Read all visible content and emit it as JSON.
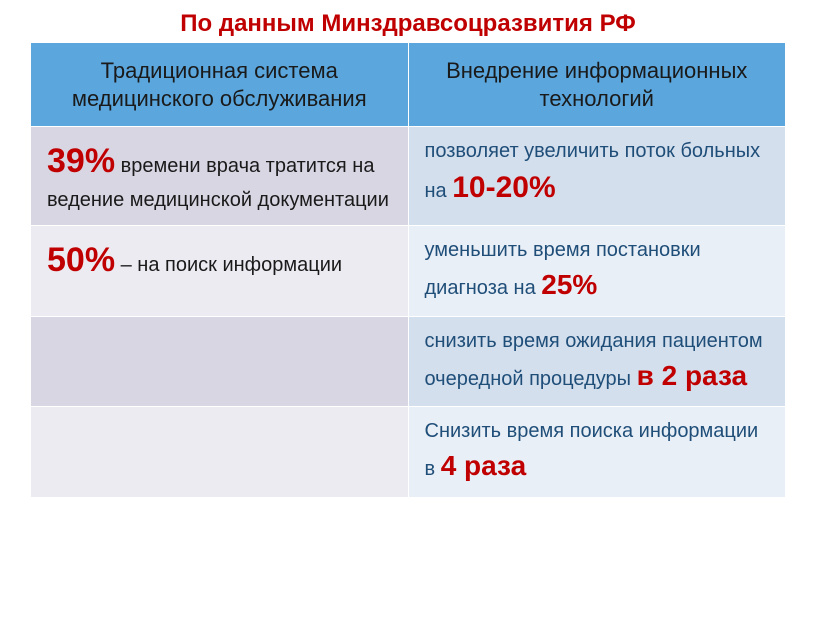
{
  "title": {
    "text": "По данным Минздравсоцразвития РФ",
    "color": "#c00000",
    "fontsize": 24
  },
  "table": {
    "header_bg_left": "#5aa6dd",
    "header_bg_right": "#5aa6dd",
    "header_color": "#1a1a1a",
    "col_widths": [
      "50%",
      "50%"
    ],
    "headers": {
      "left": "Традиционная система медицинского обслуживания",
      "right": "Внедрение информационных технологий"
    },
    "row_bg": {
      "left_alt1": "#d9d6e4",
      "left_alt2": "#ecebf2",
      "right_alt1": "#d4dfed",
      "right_alt2": "#e9eff6"
    },
    "text_colors": {
      "left_body": "#1a1a1a",
      "right_body": "#1f4e79",
      "emphasis": "#c00000"
    },
    "rows": [
      {
        "left_big": "39%",
        "left_big_size": 34,
        "left_rest": " времени врача тратится на ведение медицинской документации",
        "right_pre": "позволяет увеличить поток больных на ",
        "right_big": "10-20%",
        "right_big_size": 30,
        "right_post": ""
      },
      {
        "left_big": "50%",
        "left_big_size": 34,
        "left_rest": " – на поиск информации",
        "right_pre": "уменьшить время постановки диагноза на ",
        "right_big": "25%",
        "right_big_size": 28,
        "right_post": ""
      },
      {
        "left_big": "",
        "left_big_size": 0,
        "left_rest": "",
        "right_pre": "снизить время ожидания пациентом очередной процедуры ",
        "right_big": "в 2 раза",
        "right_big_size": 28,
        "right_post": ""
      },
      {
        "left_big": "",
        "left_big_size": 0,
        "left_rest": "",
        "right_pre": "Снизить время поиска информации в ",
        "right_big": "4 раза",
        "right_big_size": 28,
        "right_post": ""
      }
    ]
  }
}
